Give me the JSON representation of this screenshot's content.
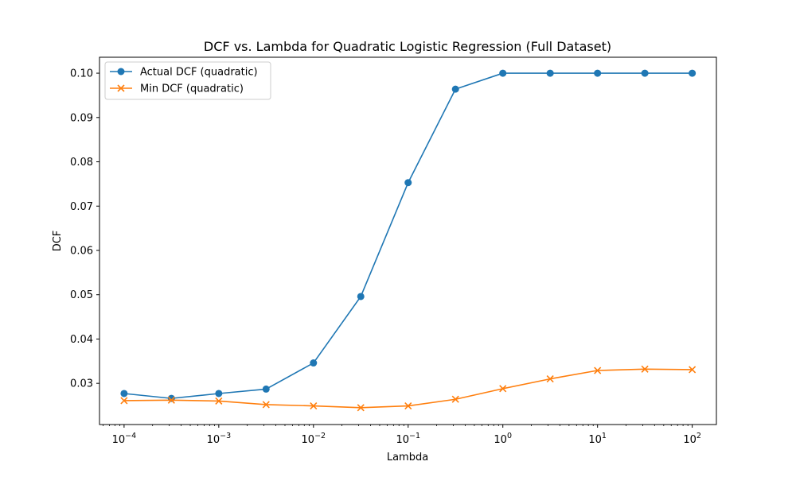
{
  "chart_data": {
    "type": "line",
    "title": "DCF vs. Lambda for Quadratic Logistic Regression (Full Dataset)",
    "xlabel": "Lambda",
    "ylabel": "DCF",
    "xscale": "log",
    "xlim": [
      5.5e-05,
      180
    ],
    "ylim": [
      0.0207,
      0.1036
    ],
    "legend_position": "top-left",
    "grid": false,
    "x_ticks": [
      {
        "value": 0.0001,
        "base": "10",
        "exp": "−4"
      },
      {
        "value": 0.001,
        "base": "10",
        "exp": "−3"
      },
      {
        "value": 0.01,
        "base": "10",
        "exp": "−2"
      },
      {
        "value": 0.1,
        "base": "10",
        "exp": "−1"
      },
      {
        "value": 1,
        "base": "10",
        "exp": "0"
      },
      {
        "value": 10,
        "base": "10",
        "exp": "1"
      },
      {
        "value": 100,
        "base": "10",
        "exp": "2"
      }
    ],
    "y_ticks": [
      {
        "value": 0.03,
        "label": "0.03"
      },
      {
        "value": 0.04,
        "label": "0.04"
      },
      {
        "value": 0.05,
        "label": "0.05"
      },
      {
        "value": 0.06,
        "label": "0.06"
      },
      {
        "value": 0.07,
        "label": "0.07"
      },
      {
        "value": 0.08,
        "label": "0.08"
      },
      {
        "value": 0.09,
        "label": "0.09"
      },
      {
        "value": 0.1,
        "label": "0.10"
      }
    ],
    "x": [
      0.0001,
      0.000316,
      0.001,
      0.00316,
      0.01,
      0.0316,
      0.1,
      0.316,
      1,
      3.16,
      10,
      31.6,
      100
    ],
    "series": [
      {
        "name": "Actual DCF (quadratic)",
        "color": "#1f77b4",
        "marker": "circle",
        "values": [
          0.0277,
          0.0266,
          0.0277,
          0.0287,
          0.0346,
          0.0496,
          0.0753,
          0.0964,
          0.1,
          0.1,
          0.1,
          0.1,
          0.1
        ]
      },
      {
        "name": "Min DCF (quadratic)",
        "color": "#ff7f0e",
        "marker": "x",
        "values": [
          0.0261,
          0.0262,
          0.026,
          0.0252,
          0.0249,
          0.0245,
          0.0249,
          0.0264,
          0.0288,
          0.031,
          0.0329,
          0.0332,
          0.0331
        ]
      }
    ]
  }
}
